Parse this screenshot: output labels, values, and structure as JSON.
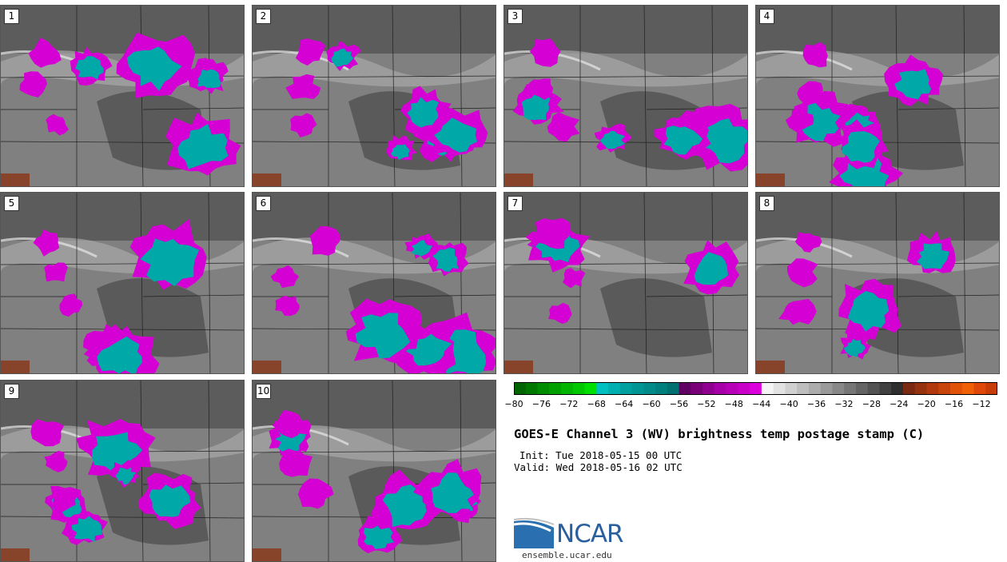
{
  "panels": [
    {
      "label": "1",
      "seed": 11
    },
    {
      "label": "2",
      "seed": 23
    },
    {
      "label": "3",
      "seed": 37
    },
    {
      "label": "4",
      "seed": 41
    },
    {
      "label": "5",
      "seed": 53
    },
    {
      "label": "6",
      "seed": 67
    },
    {
      "label": "7",
      "seed": 71
    },
    {
      "label": "8",
      "seed": 89
    },
    {
      "label": "9",
      "seed": 97
    },
    {
      "label": "10",
      "seed": 103
    }
  ],
  "colorbar": {
    "ticks": [
      "−80",
      "−76",
      "−72",
      "−68",
      "−64",
      "−60",
      "−56",
      "−52",
      "−48",
      "−44",
      "−40",
      "−36",
      "−32",
      "−28",
      "−24",
      "−20",
      "−16",
      "−12"
    ],
    "colors": [
      "#006400",
      "#007800",
      "#008c00",
      "#00a000",
      "#00b400",
      "#00c800",
      "#00e000",
      "#00c0c0",
      "#00b0b0",
      "#00a0a0",
      "#009595",
      "#008a8a",
      "#007f7f",
      "#007070",
      "#600060",
      "#7a007a",
      "#900090",
      "#a800a8",
      "#b800b8",
      "#c800c8",
      "#dc00dc",
      "#f4f4f4",
      "#e2e2e2",
      "#d0d0d0",
      "#bebebe",
      "#acacac",
      "#9a9a9a",
      "#888888",
      "#767676",
      "#646464",
      "#525252",
      "#404040",
      "#2e2e2e",
      "#7a2a10",
      "#96330f",
      "#b03a0d",
      "#c8440a",
      "#e05208",
      "#f06006",
      "#e0480a",
      "#c83c08"
    ]
  },
  "title": "GOES-E Channel 3 (WV) brightness temp postage stamp (C)",
  "init": "Init: Tue 2018-05-15 00 UTC",
  "valid": "Valid: Wed 2018-05-16 02 UTC",
  "logo": {
    "text": "NCAR",
    "site": "ensemble.ucar.edu",
    "brand_color": "#2a5f9e"
  }
}
